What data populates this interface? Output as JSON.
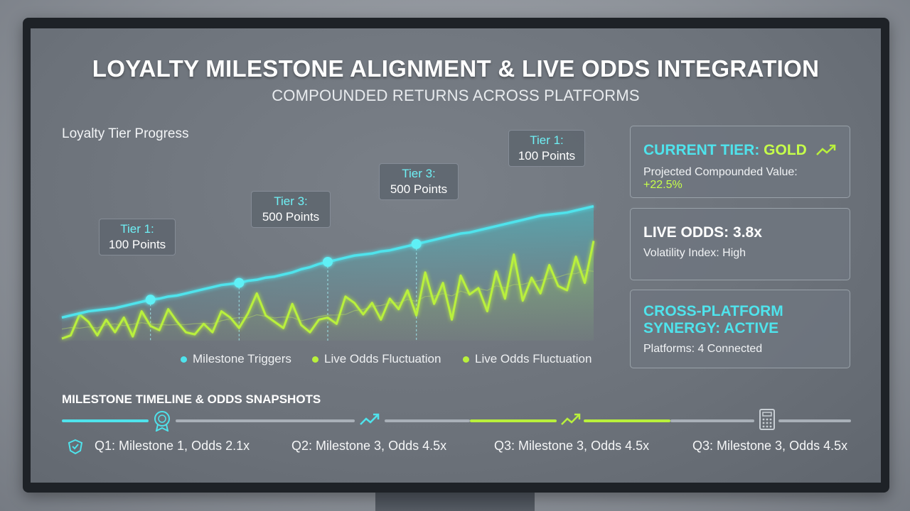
{
  "header": {
    "title": "LOYALTY MILESTONE ALIGNMENT & LIVE ODDS INTEGRATION",
    "subtitle": "COMPOUNDED RETURNS ACROSS PLATFORMS"
  },
  "chart": {
    "label": "Loyalty Tier Progress",
    "callouts": [
      {
        "tier": "Tier 1:",
        "points": "100 Points"
      },
      {
        "tier": "Tier 3:",
        "points": "500 Points"
      },
      {
        "tier": "Tier 3:",
        "points": "500 Points"
      },
      {
        "tier": "Tier 1:",
        "points": "100 Points"
      }
    ],
    "legend": [
      {
        "label": "Milestone Triggers",
        "color": "#4fe3ec"
      },
      {
        "label": "Live Odds Fluctuation",
        "color": "#b9f03c"
      },
      {
        "label": "Live Odds Fluctuation",
        "color": "#b9f03c"
      }
    ]
  },
  "chart_data": {
    "type": "line",
    "title": "Loyalty Tier Progress",
    "x": [
      0,
      1,
      2,
      3,
      4,
      5,
      6,
      7,
      8,
      9,
      10,
      11,
      12,
      13,
      14,
      15,
      16,
      17,
      18,
      19,
      20,
      21,
      22,
      23,
      24,
      25,
      26,
      27,
      28,
      29,
      30,
      31,
      32,
      33,
      34,
      35,
      36,
      37,
      38,
      39,
      40,
      41,
      42,
      43,
      44,
      45,
      46,
      47,
      48,
      49,
      50,
      51,
      52,
      53,
      54,
      55,
      56,
      57,
      58,
      59,
      60
    ],
    "series": [
      {
        "name": "Milestone Triggers",
        "color": "#4fe3ec",
        "values": [
          22,
          24,
          26,
          28,
          29,
          30,
          31,
          33,
          35,
          37,
          39,
          40,
          42,
          43,
          45,
          47,
          49,
          51,
          53,
          54,
          55,
          57,
          58,
          60,
          61,
          63,
          65,
          68,
          70,
          73,
          75,
          77,
          79,
          81,
          82,
          83,
          85,
          86,
          88,
          90,
          92,
          94,
          96,
          98,
          100,
          102,
          103,
          105,
          107,
          109,
          111,
          113,
          115,
          117,
          119,
          120,
          121,
          122,
          124,
          126,
          128
        ]
      },
      {
        "name": "Live Odds Fluctuation",
        "color": "#b9f03c",
        "values": [
          2,
          5,
          25,
          18,
          5,
          20,
          8,
          22,
          4,
          28,
          14,
          10,
          30,
          18,
          8,
          6,
          16,
          8,
          28,
          22,
          12,
          26,
          45,
          24,
          18,
          12,
          35,
          15,
          8,
          20,
          22,
          16,
          42,
          36,
          25,
          36,
          20,
          40,
          30,
          48,
          24,
          65,
          35,
          55,
          20,
          62,
          44,
          50,
          28,
          66,
          40,
          82,
          38,
          60,
          45,
          72,
          52,
          48,
          80,
          55,
          95
        ]
      }
    ],
    "milestones": [
      {
        "label": "Tier 1: 100 Points",
        "x_index": 10
      },
      {
        "label": "Tier 3: 500 Points",
        "x_index": 20
      },
      {
        "label": "Tier 3: 500 Points",
        "x_index": 30
      },
      {
        "label": "Tier 1: 100 Points",
        "x_index": 40
      }
    ],
    "grid": false,
    "legend_position": "bottom"
  },
  "cards": {
    "tier": {
      "heading_prefix": "CURRENT TIER: ",
      "heading_value": "GOLD",
      "sub_label": "Projected Compounded Value: ",
      "sub_value": "+22.5%",
      "icon": "trend-up-icon"
    },
    "odds": {
      "heading": "LIVE ODDS: 3.8x",
      "sub": "Volatility Index: High"
    },
    "synergy": {
      "heading_line1": "CROSS-PLATFORM",
      "heading_line2": "SYNERGY: ACTIVE",
      "sub": "Platforms: 4 Connected"
    }
  },
  "timeline": {
    "title": "MILESTONE TIMELINE & ODDS SNAPSHOTS",
    "items": [
      {
        "label": "Q1: Milestone 1, Odds 2.1x",
        "icon": "badge-icon"
      },
      {
        "label": "Q2: Milestone 3, Odds 4.5x",
        "icon": "trend-up-icon"
      },
      {
        "label": "Q3: Milestone 3, Odds 4.5x",
        "icon": "trend-up-icon"
      },
      {
        "label": "Q3: Milestone 3, Odds 4.5x",
        "icon": "calculator-icon"
      }
    ]
  },
  "colors": {
    "cyan": "#4fe3ec",
    "lime": "#b9f03c",
    "accent_green": "#c6ff4a"
  }
}
